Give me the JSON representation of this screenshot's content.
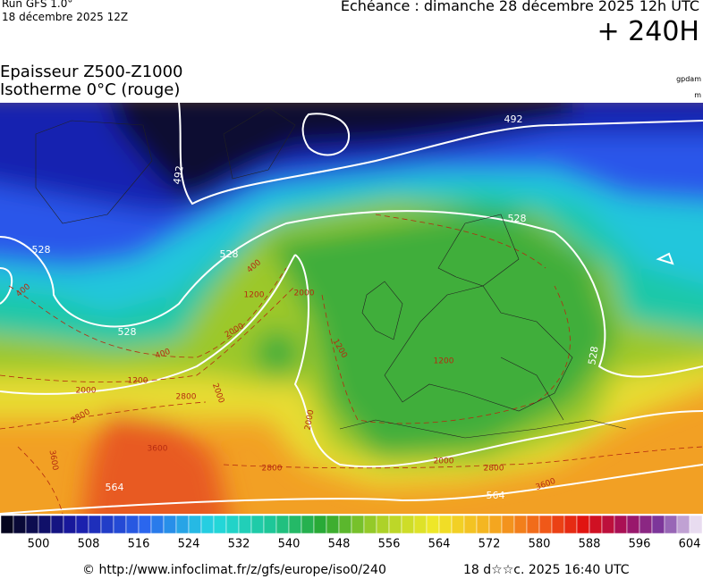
{
  "header": {
    "run": "Run GFS 1.0°",
    "run_date": "18 décembre 2025 12Z",
    "valid": "Echéance : dimanche 28 décembre 2025 12h UTC",
    "lead": "+ 240H"
  },
  "title": {
    "line1": "Epaisseur Z500-Z1000",
    "line2": "Isotherme 0°C (rouge)",
    "unit1": "gpdam",
    "unit2": "m"
  },
  "map": {
    "contour_labels": [
      "492",
      "492",
      "528",
      "528",
      "528",
      "528",
      "528",
      "564",
      "564",
      "400",
      "400",
      "400",
      "1200",
      "1200",
      "1200",
      "1200",
      "2000",
      "2000",
      "2000",
      "2000",
      "2000",
      "2000",
      "2800",
      "2800",
      "2800",
      "2800",
      "3600",
      "3600",
      "3600"
    ]
  },
  "colorbar": {
    "ticks": [
      500,
      508,
      516,
      524,
      532,
      540,
      548,
      556,
      564,
      572,
      580,
      588,
      596,
      604
    ],
    "range": [
      494,
      606
    ]
  },
  "footer": {
    "source": "© http://www.infoclimat.fr/z/gfs/europe/iso0/240",
    "timestamp": "18 d☆☆c. 2025 16:40 UTC"
  }
}
